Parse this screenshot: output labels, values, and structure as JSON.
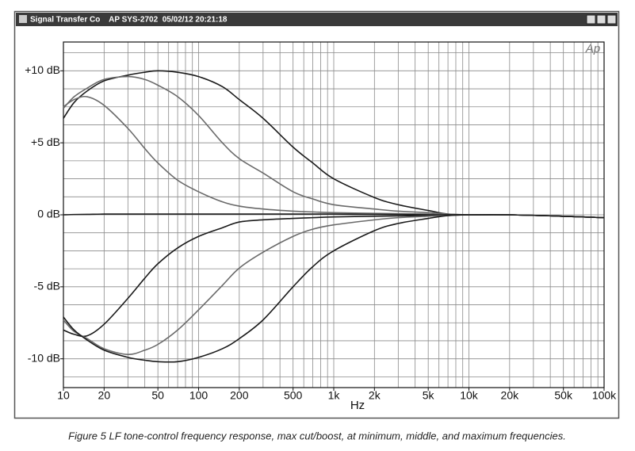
{
  "window_title": "Signal Transfer Co    AP SYS-2702  05/02/12 20:21:18",
  "logo": "Ap",
  "caption": "Figure 5 LF tone-control frequency response, max cut/boost, at minimum, middle, and maximum frequencies.",
  "chart_data": {
    "type": "line",
    "xlabel": "Hz",
    "xscale": "log",
    "grid": true,
    "x": [
      10,
      12,
      15,
      20,
      30,
      40,
      50,
      70,
      100,
      150,
      200,
      300,
      500,
      700,
      1000,
      2000,
      3000,
      5000,
      7000,
      10000,
      20000,
      50000,
      100000
    ],
    "series": [
      {
        "color": "#1a1a1a",
        "values": [
          6.7,
          7.8,
          8.6,
          9.3,
          9.7,
          9.9,
          10.0,
          9.9,
          9.6,
          8.9,
          8.0,
          6.7,
          4.7,
          3.6,
          2.5,
          1.2,
          0.7,
          0.3,
          0.05,
          0,
          0,
          -0.1,
          -0.2
        ]
      },
      {
        "color": "#6a6a6a",
        "values": [
          7.4,
          8.2,
          8.8,
          9.4,
          9.6,
          9.4,
          9.0,
          8.2,
          6.9,
          5.0,
          3.9,
          2.9,
          1.6,
          1.1,
          0.7,
          0.4,
          0.25,
          0.15,
          0.05,
          0,
          0,
          -0.1,
          -0.2
        ]
      },
      {
        "color": "#6a6a6a",
        "values": [
          7.5,
          8.0,
          8.2,
          7.6,
          6.0,
          4.6,
          3.6,
          2.4,
          1.6,
          0.9,
          0.6,
          0.4,
          0.25,
          0.2,
          0.15,
          0.1,
          0.08,
          0.05,
          0,
          0,
          0,
          -0.1,
          -0.2
        ]
      },
      {
        "color": "#1a1a1a",
        "values": [
          0,
          0.02,
          0.03,
          0.05,
          0.05,
          0.05,
          0.05,
          0.05,
          0.05,
          0.05,
          0.05,
          0.05,
          0.05,
          0.05,
          0.05,
          0.03,
          0.02,
          0,
          0,
          0,
          0,
          -0.1,
          -0.2
        ]
      },
      {
        "color": "#1a1a1a",
        "values": [
          -8.0,
          -8.3,
          -8.4,
          -7.6,
          -5.8,
          -4.4,
          -3.4,
          -2.3,
          -1.5,
          -0.9,
          -0.5,
          -0.35,
          -0.25,
          -0.2,
          -0.15,
          -0.1,
          -0.08,
          -0.05,
          0,
          0,
          0,
          -0.1,
          -0.2
        ]
      },
      {
        "color": "#6a6a6a",
        "values": [
          -7.3,
          -8.1,
          -8.6,
          -9.3,
          -9.7,
          -9.4,
          -9.0,
          -8.0,
          -6.6,
          -4.9,
          -3.7,
          -2.6,
          -1.5,
          -1.0,
          -0.7,
          -0.35,
          -0.2,
          -0.1,
          -0.05,
          0,
          0,
          -0.1,
          -0.2
        ]
      },
      {
        "color": "#1a1a1a",
        "values": [
          -7.1,
          -8.0,
          -8.7,
          -9.4,
          -9.9,
          -10.1,
          -10.2,
          -10.2,
          -9.9,
          -9.3,
          -8.6,
          -7.3,
          -5.0,
          -3.6,
          -2.5,
          -1.1,
          -0.6,
          -0.25,
          -0.05,
          0,
          0,
          -0.1,
          -0.2
        ]
      }
    ],
    "xlim": [
      10,
      100000
    ],
    "xticks": [
      10,
      20,
      50,
      100,
      200,
      500,
      {
        "value": 1000,
        "label": "1k"
      },
      {
        "value": 2000,
        "label": "2k"
      },
      {
        "value": 5000,
        "label": "5k"
      },
      {
        "value": 10000,
        "label": "10k"
      },
      {
        "value": 20000,
        "label": "20k"
      },
      {
        "value": 50000,
        "label": "50k"
      },
      {
        "value": 100000,
        "label": "100k"
      }
    ],
    "xgrid": [
      10,
      20,
      30,
      40,
      50,
      60,
      70,
      80,
      90,
      100,
      200,
      300,
      400,
      500,
      600,
      700,
      800,
      900,
      1000,
      2000,
      3000,
      4000,
      5000,
      6000,
      7000,
      8000,
      9000,
      10000,
      20000,
      30000,
      40000,
      50000,
      60000,
      70000,
      80000,
      90000,
      100000
    ],
    "ylim": [
      -12,
      12
    ],
    "yticks": [
      {
        "value": 10,
        "label": "+10 dB"
      },
      {
        "value": 5,
        "label": "+5 dB"
      },
      {
        "value": 0,
        "label": "0 dB"
      },
      {
        "value": -5,
        "label": "-5 dB"
      },
      {
        "value": -10,
        "label": "-10 dB"
      }
    ],
    "ygrid": [
      -11.25,
      -10,
      -8.75,
      -7.5,
      -6.25,
      -5,
      -3.75,
      -2.5,
      -1.25,
      0,
      1.25,
      2.5,
      3.75,
      5,
      6.25,
      7.5,
      8.75,
      10,
      11.25
    ]
  }
}
